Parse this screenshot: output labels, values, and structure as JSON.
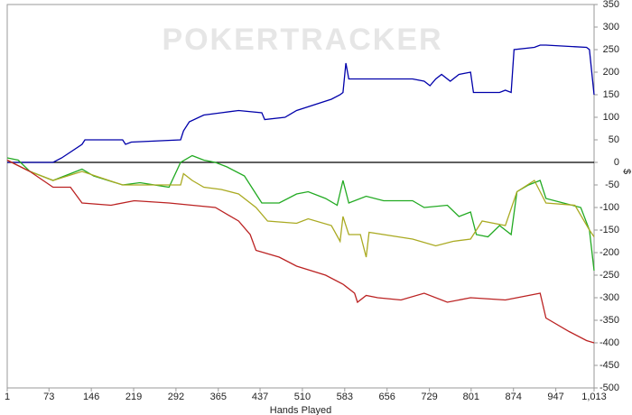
{
  "chart_data": {
    "type": "line",
    "watermark": "POKERTRACKER",
    "x_label": "Hands Played",
    "y_label": "$",
    "xlim": [
      1,
      1013
    ],
    "xticks": [
      1,
      73,
      146,
      219,
      292,
      365,
      437,
      510,
      583,
      656,
      729,
      801,
      874,
      947,
      {
        "value": 1013,
        "label": "1,013"
      }
    ],
    "ylim": [
      -500,
      350
    ],
    "yticks": [
      -500,
      -450,
      -400,
      -350,
      -300,
      -250,
      -200,
      -150,
      -100,
      -50,
      0,
      50,
      100,
      150,
      200,
      250,
      300,
      350
    ],
    "grid": false,
    "zero_line": true,
    "series": [
      {
        "color": "#0000aa",
        "x": [
          1,
          80,
          95,
          130,
          135,
          200,
          205,
          215,
          300,
          305,
          315,
          340,
          370,
          400,
          440,
          445,
          480,
          500,
          560,
          575,
          580,
          585,
          590,
          700,
          720,
          730,
          740,
          750,
          765,
          780,
          800,
          805,
          850,
          860,
          870,
          875,
          910,
          920,
          930,
          1000,
          1005,
          1013
        ],
        "values": [
          0,
          0,
          10,
          40,
          50,
          50,
          40,
          45,
          50,
          70,
          90,
          105,
          110,
          115,
          110,
          95,
          100,
          115,
          140,
          150,
          155,
          220,
          185,
          185,
          180,
          170,
          185,
          195,
          180,
          195,
          200,
          155,
          155,
          160,
          155,
          250,
          255,
          260,
          260,
          255,
          250,
          150
        ]
      },
      {
        "color": "#22aa22",
        "x": [
          1,
          20,
          40,
          80,
          130,
          150,
          200,
          230,
          280,
          300,
          320,
          340,
          360,
          380,
          410,
          430,
          440,
          470,
          500,
          520,
          550,
          570,
          580,
          590,
          620,
          650,
          700,
          720,
          760,
          780,
          800,
          810,
          830,
          850,
          870,
          880,
          900,
          920,
          930,
          960,
          990,
          1005,
          1013
        ],
        "values": [
          10,
          5,
          -20,
          -40,
          -15,
          -30,
          -50,
          -45,
          -55,
          0,
          15,
          5,
          0,
          -10,
          -30,
          -70,
          -90,
          -90,
          -70,
          -65,
          -80,
          -95,
          -40,
          -90,
          -75,
          -85,
          -85,
          -100,
          -95,
          -120,
          -110,
          -160,
          -165,
          -140,
          -160,
          -65,
          -50,
          -40,
          -80,
          -90,
          -100,
          -150,
          -240
        ]
      },
      {
        "color": "#aaaa22",
        "x": [
          1,
          40,
          80,
          130,
          200,
          300,
          305,
          320,
          340,
          370,
          400,
          430,
          450,
          500,
          520,
          560,
          575,
          580,
          590,
          610,
          620,
          625,
          700,
          740,
          770,
          800,
          820,
          860,
          880,
          910,
          930,
          980,
          1005,
          1013
        ],
        "values": [
          5,
          -20,
          -40,
          -20,
          -50,
          -50,
          -25,
          -40,
          -55,
          -60,
          -70,
          -100,
          -130,
          -135,
          -125,
          -140,
          -175,
          -120,
          -160,
          -160,
          -210,
          -155,
          -170,
          -185,
          -175,
          -170,
          -130,
          -140,
          -65,
          -40,
          -90,
          -95,
          -150,
          -165
        ]
      },
      {
        "color": "#bb2222",
        "x": [
          1,
          40,
          80,
          110,
          130,
          180,
          220,
          280,
          320,
          360,
          400,
          420,
          430,
          470,
          500,
          550,
          580,
          600,
          605,
          620,
          640,
          680,
          720,
          760,
          800,
          860,
          880,
          900,
          920,
          930,
          970,
          1000,
          1013
        ],
        "values": [
          5,
          -20,
          -55,
          -55,
          -90,
          -95,
          -85,
          -90,
          -95,
          -100,
          -130,
          -160,
          -195,
          -210,
          -230,
          -250,
          -270,
          -290,
          -310,
          -295,
          -300,
          -305,
          -290,
          -310,
          -300,
          -305,
          -300,
          -295,
          -290,
          -345,
          -375,
          -395,
          -400
        ]
      }
    ]
  }
}
